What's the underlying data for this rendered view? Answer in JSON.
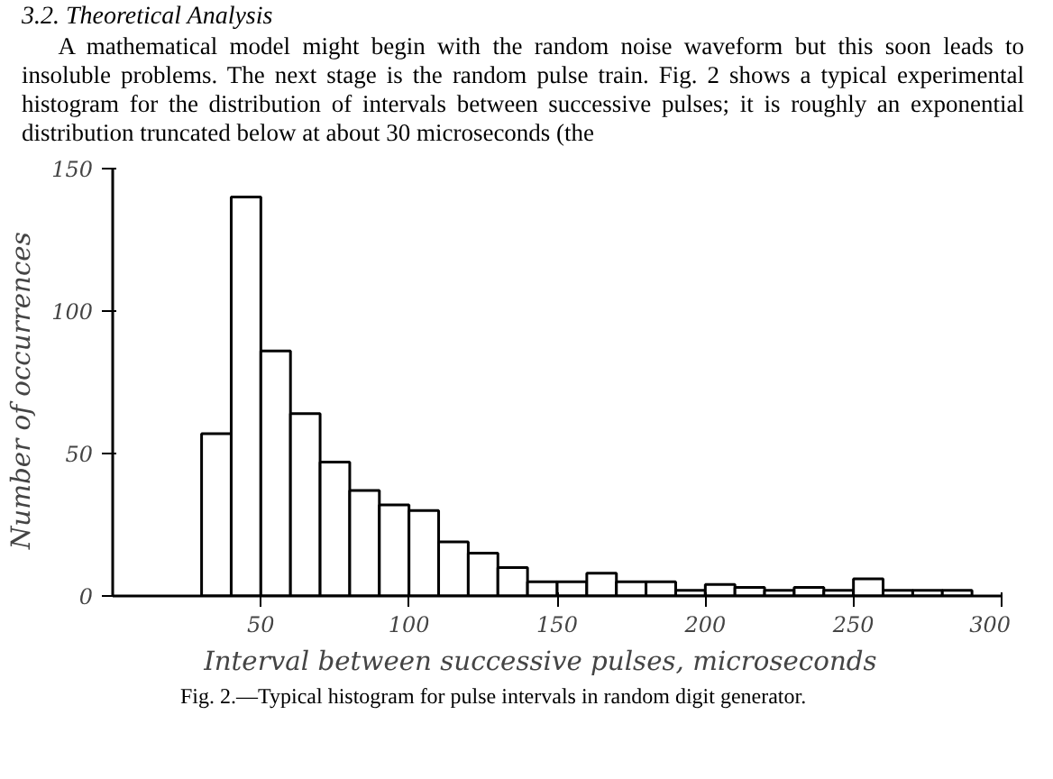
{
  "chart_data": {
    "type": "histogram",
    "title": "3.2. Theoretical Analysis",
    "annotations": [
      "A mathematical model might begin with the random noise waveform but this soon leads to insoluble problems.  The next stage is the random pulse train.  Fig. 2 shows a typical experimental histogram for the distribution of intervals between successive pulses; it is roughly an exponential distribution truncated below at about 30 microseconds (the",
      "Fig. 2.—Typical histogram for pulse intervals in random digit generator."
    ],
    "xlabel": "Interval  between  successive  pulses,  microseconds",
    "ylabel": "Number  of  occurrences",
    "bins": [
      30,
      40,
      50,
      60,
      70,
      80,
      90,
      100,
      110,
      120,
      130,
      140,
      150,
      160,
      170,
      180,
      190,
      200,
      210,
      220,
      230,
      240,
      250,
      260,
      270,
      280,
      290
    ],
    "values": [
      57,
      140,
      86,
      64,
      47,
      37,
      32,
      30,
      19,
      15,
      10,
      5,
      5,
      8,
      5,
      5,
      2,
      4,
      3,
      2,
      3,
      2,
      6,
      2,
      2,
      2
    ],
    "color": "#ffffff",
    "xlim": [
      0,
      300
    ],
    "xticks": [
      50,
      100,
      150,
      200,
      250,
      300
    ],
    "ylim": [
      0,
      150
    ],
    "yticks": [
      0,
      50,
      100,
      150
    ]
  }
}
